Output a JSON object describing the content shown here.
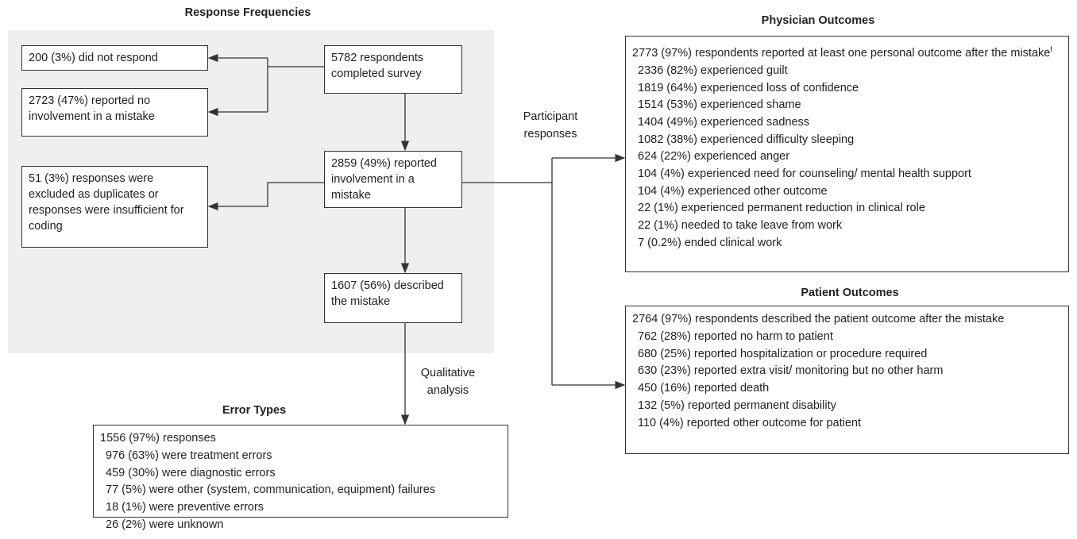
{
  "response_frequencies": {
    "title": "Response Frequencies",
    "nodes": [
      {
        "id": "completed",
        "text": "5782 respondents completed survey"
      },
      {
        "id": "no_response",
        "text": "200 (3%) did not respond"
      },
      {
        "id": "no_involvement",
        "text": "2723 (47%) reported no involvement in a mistake"
      },
      {
        "id": "involvement",
        "text": "2859 (49%) reported involvement in a mistake"
      },
      {
        "id": "excluded",
        "text": "51 (3%) responses were excluded as duplicates or responses were insufficient for coding"
      },
      {
        "id": "described",
        "text": "1607 (56%) described the mistake"
      }
    ]
  },
  "edge_labels": {
    "participant": "Participant responses",
    "qualitative": "Qualitative analysis"
  },
  "error_types": {
    "title": "Error Types",
    "summary": "1556 (97%) responses",
    "items": [
      "976 (63%) were treatment errors",
      "459 (30%) were diagnostic errors",
      "77 (5%) were other (system, communication, equipment) failures",
      "18 (1%) were preventive errors",
      "26 (2%) were unknown"
    ]
  },
  "physician_outcomes": {
    "title": "Physician Outcomes",
    "summary": "2773 (97%) respondents reported at least one personal outcome after the mistake",
    "footnote_mark": "f",
    "items": [
      "2336 (82%) experienced guilt",
      "1819 (64%) experienced loss of confidence",
      "1514 (53%) experienced shame",
      "1404 (49%) experienced sadness",
      "1082 (38%) experienced difficulty sleeping",
      "624 (22%) experienced anger",
      "104 (4%) experienced need for counseling/ mental health support",
      "104 (4%) experienced other outcome",
      "22 (1%) experienced permanent reduction in clinical role",
      "22 (1%) needed to take leave from work",
      "7 (0.2%) ended clinical work"
    ]
  },
  "patient_outcomes": {
    "title": "Patient Outcomes",
    "summary": "2764 (97%) respondents described the patient outcome after the mistake",
    "items": [
      "762 (28%) reported no harm to patient",
      "680 (25%) reported hospitalization or procedure required",
      "630 (23%) reported extra visit/ monitoring but no other harm",
      "450 (16%) reported death",
      "132 (5%) reported permanent disability",
      "110 (4%) reported other outcome for patient"
    ]
  }
}
